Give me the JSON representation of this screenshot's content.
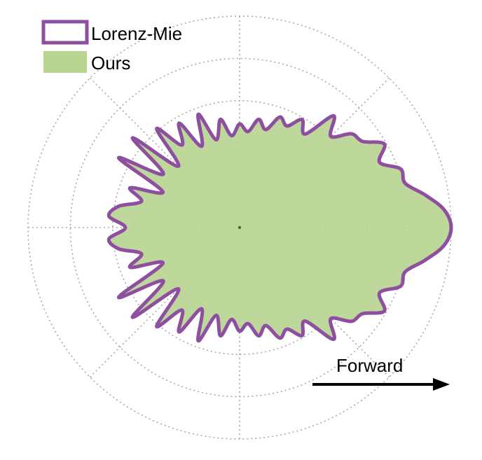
{
  "chart_data": {
    "type": "polar-area",
    "title": "",
    "r_max": 5,
    "radial_grid": [
      1,
      2,
      3,
      4,
      5
    ],
    "angular_grid_deg": [
      0,
      45,
      90,
      135,
      180,
      225,
      270,
      315
    ],
    "grid": true,
    "legend_position": "top-left",
    "series": [
      {
        "name": "Lorenz-Mie",
        "style": "outline",
        "color": "#8e4fa0",
        "theta_deg": [
          0,
          5,
          10,
          15,
          20,
          25,
          30,
          35,
          40,
          45,
          50,
          55,
          60,
          65,
          70,
          75,
          80,
          85,
          90,
          95,
          100,
          105,
          110,
          115,
          120,
          125,
          130,
          135,
          140,
          145,
          150,
          155,
          160,
          165,
          170,
          175,
          180
        ],
        "r": [
          5.0,
          4.85,
          4.45,
          4.05,
          4.05,
          3.65,
          3.95,
          3.55,
          3.45,
          3.05,
          3.45,
          2.7,
          2.95,
          2.65,
          2.78,
          2.4,
          2.6,
          2.28,
          2.45,
          2.18,
          2.6,
          2.15,
          2.85,
          2.12,
          2.85,
          2.38,
          3.05,
          2.05,
          3.3,
          2.2,
          3.3,
          2.0,
          2.75,
          2.4,
          2.9,
          3.1,
          2.7
        ]
      },
      {
        "name": "Ours",
        "style": "fill",
        "color": "#b9d592",
        "theta_deg": [
          0,
          5,
          10,
          15,
          20,
          25,
          30,
          35,
          40,
          45,
          50,
          55,
          60,
          65,
          70,
          75,
          80,
          85,
          90,
          95,
          100,
          105,
          110,
          115,
          120,
          125,
          130,
          135,
          140,
          145,
          150,
          155,
          160,
          165,
          170,
          175,
          180
        ],
        "r": [
          5.0,
          4.85,
          4.45,
          4.05,
          4.05,
          3.65,
          3.95,
          3.55,
          3.45,
          3.05,
          3.45,
          2.7,
          2.95,
          2.65,
          2.78,
          2.4,
          2.6,
          2.28,
          2.45,
          2.18,
          2.6,
          2.15,
          2.85,
          2.12,
          2.85,
          2.38,
          3.05,
          2.05,
          3.3,
          2.2,
          3.3,
          2.0,
          2.75,
          2.4,
          2.9,
          3.1,
          2.7
        ]
      }
    ],
    "annotation": {
      "text": "Forward",
      "arrow_direction": "right"
    }
  }
}
